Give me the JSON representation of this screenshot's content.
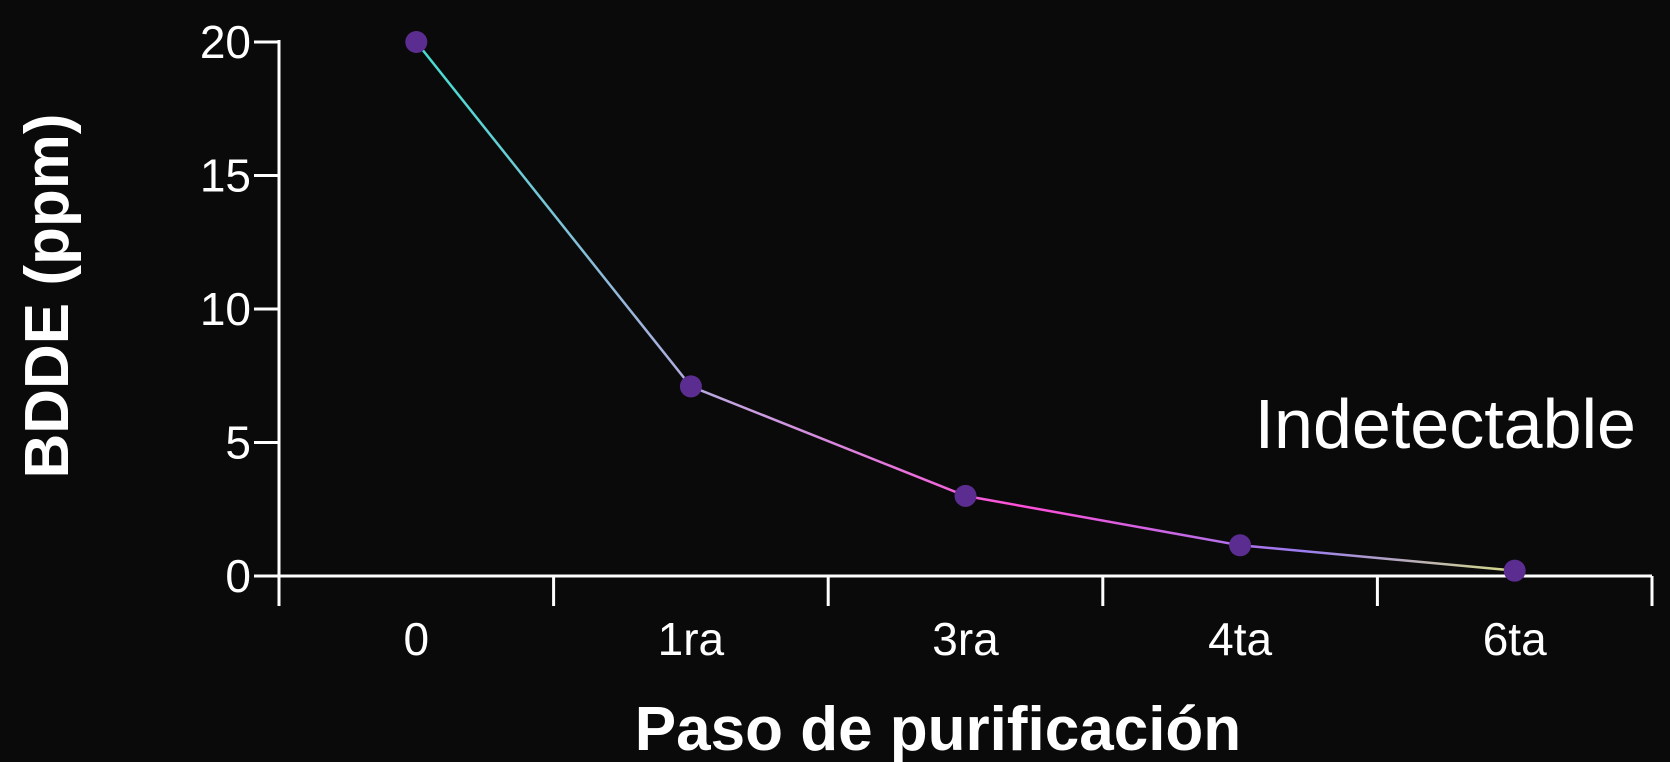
{
  "chart_data": {
    "type": "line",
    "categories": [
      "0",
      "1ra",
      "3ra",
      "4ta",
      "6ta"
    ],
    "series": [
      {
        "values": [
          20,
          7.1,
          3.0,
          1.15,
          0.2
        ]
      }
    ],
    "xlabel": "Paso de purificación",
    "ylabel": "BDDE (ppm)",
    "ylim": [
      0,
      20
    ],
    "yticks": [
      0,
      5,
      10,
      15,
      20
    ],
    "annotation": "Indetectable",
    "grid": false,
    "legend": "none",
    "colors": {
      "background": "#0a0a0a",
      "axis": "#ffffff",
      "marker": "#5c2d91",
      "line_gradient": [
        "#40e0d0",
        "#c8a0e0",
        "#ff4fd8",
        "#9a7cf0",
        "#d8e080"
      ]
    }
  }
}
